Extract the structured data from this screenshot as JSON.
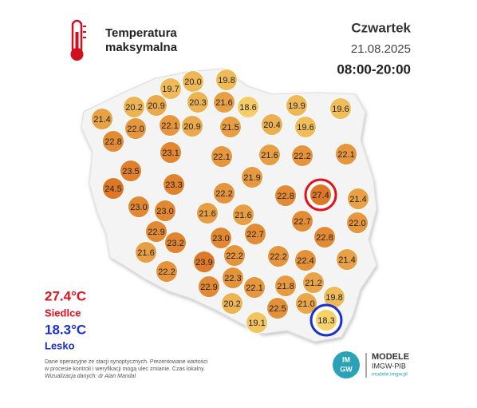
{
  "header": {
    "title_lines": [
      "Temperatura",
      "maksymalna"
    ],
    "day": "Czwartek",
    "date": "21.08.2025",
    "hours": "08:00-20:00"
  },
  "map": {
    "stations": [
      "19.7",
      "20.0",
      "19.8",
      "20.3",
      "21.6",
      "18.6",
      "20.2",
      "20.9",
      "21.4",
      "22.0",
      "22.1",
      "20.9",
      "21.5",
      "20.4",
      "19.9",
      "19.6",
      "19.6",
      "22.8",
      "23.1",
      "22.1",
      "21.6",
      "22.2",
      "22.1",
      "23.5",
      "21.9",
      "24.5",
      "23.3",
      "22.2",
      "22.8",
      "27.4",
      "21.4",
      "23.0",
      "23.0",
      "21.6",
      "21.6",
      "22.7",
      "22.0",
      "22.9",
      "22.7",
      "22.8",
      "21.6",
      "23.2",
      "23.0",
      "22.2",
      "22.2",
      "22.4",
      "21.4",
      "23.9",
      "22.2",
      "22.3",
      "22.9",
      "22.1",
      "21.8",
      "21.2",
      "20.2",
      "22.5",
      "21.0",
      "19.8",
      "19.1",
      "18.3"
    ],
    "max_ring_color": "#e3101c",
    "min_ring_color": "#1a2fd0"
  },
  "extremes": {
    "max_value": "27.4°C",
    "max_place": "Siedlce",
    "min_value": "18.3°C",
    "min_place": "Lesko"
  },
  "footer": {
    "note_lines": [
      "Dane operacyjne ze stacji synoptycznych. Prezentowane wartości",
      "w procesie kontroli i weryfikacji mogą ulec zmianie. Czas lokalny."
    ],
    "credit": "Wizualizacja danych: dr Alan Mandal"
  },
  "logo": {
    "mark_top": "IM",
    "mark_bottom": "GW",
    "name": "MODELE",
    "org": "IMGW-PIB",
    "url": "modele.imgw.pl"
  }
}
